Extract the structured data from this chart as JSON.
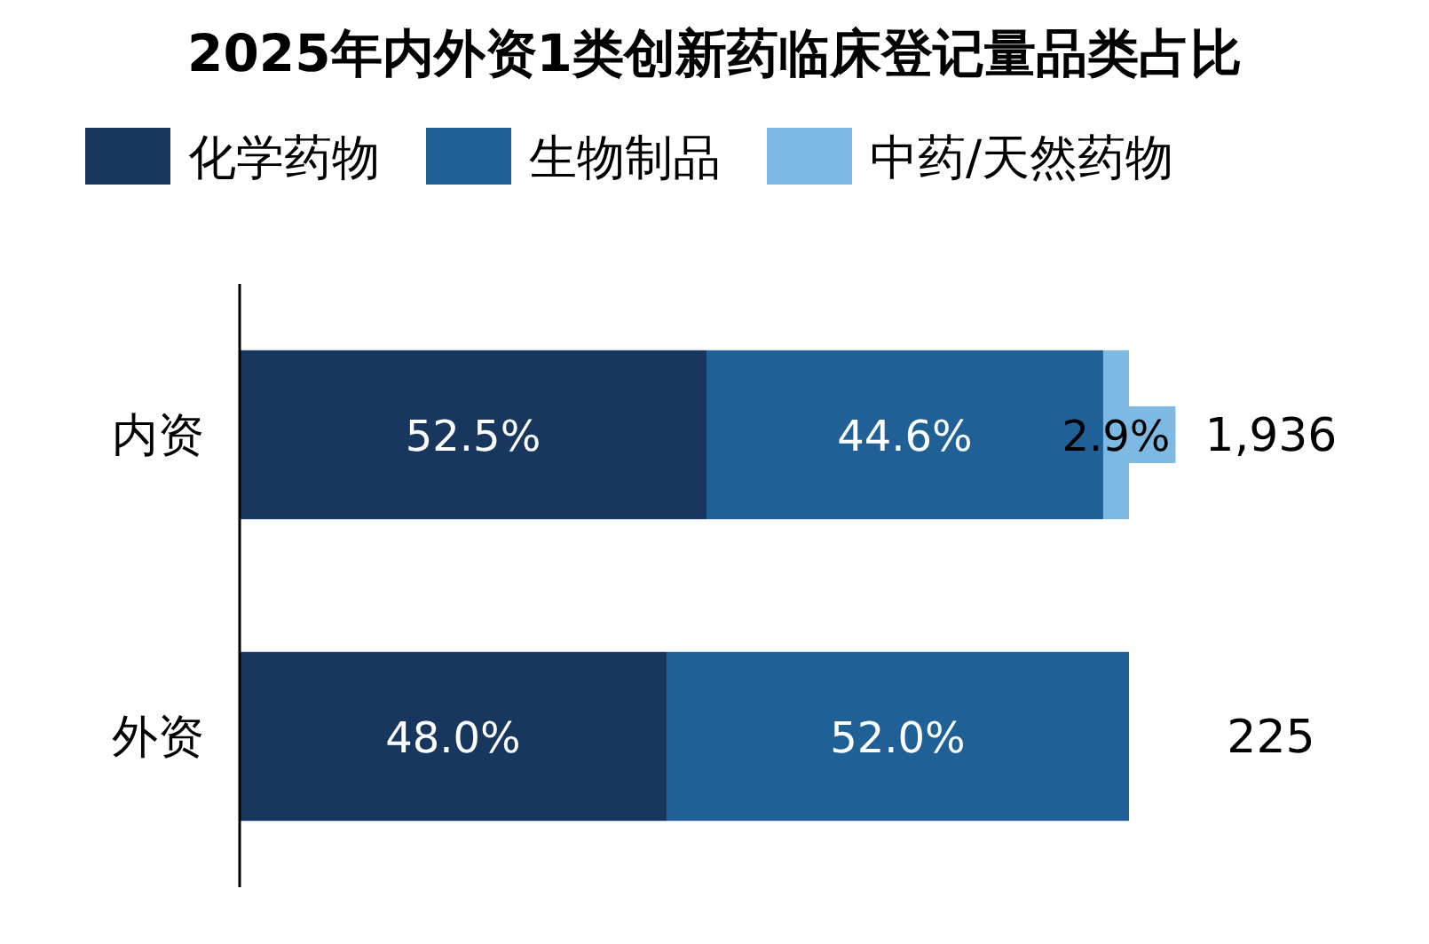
{
  "chart_data": {
    "type": "bar",
    "orientation": "horizontal",
    "stacked": true,
    "title": "2025年内外资1类创新药临床登记量品类占比",
    "categories": [
      "内资",
      "外资"
    ],
    "legend": "top",
    "series": [
      {
        "name": "化学药物",
        "color": "#17375e",
        "values": [
          52.5,
          48.0
        ],
        "value_labels": [
          "52.5%",
          "48.0%"
        ]
      },
      {
        "name": "生物制品",
        "color": "#1f6196",
        "values": [
          44.6,
          52.0
        ],
        "value_labels": [
          "44.6%",
          "52.0%"
        ]
      },
      {
        "name": "中药/天然药物",
        "color": "#7db9e3",
        "values": [
          2.9,
          null
        ],
        "value_labels": [
          "2.9%",
          null
        ]
      }
    ],
    "annotations": [
      "1,936",
      "225"
    ]
  }
}
